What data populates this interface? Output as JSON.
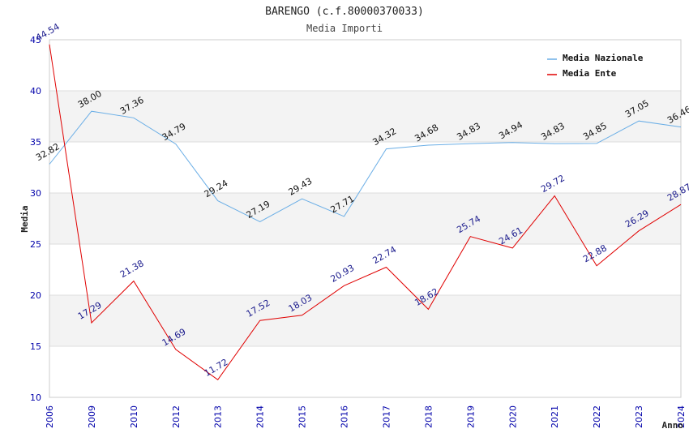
{
  "chart_data": {
    "type": "line",
    "title": "BARENGO (c.f.80000370033)",
    "subtitle": "Media Importi",
    "xlabel": "Anno",
    "ylabel": "Media",
    "ylim": [
      10,
      45
    ],
    "yticks": [
      "10",
      "15",
      "20",
      "25",
      "30",
      "35",
      "40",
      "45"
    ],
    "categories": [
      "2006",
      "2009",
      "2010",
      "2012",
      "2013",
      "2014",
      "2015",
      "2016",
      "2017",
      "2018",
      "2019",
      "2020",
      "2021",
      "2022",
      "2023",
      "2024"
    ],
    "grid": true,
    "legend_position": "top-right",
    "series": [
      {
        "name": "Media Nazionale",
        "color": "#6aaee6",
        "values": [
          32.82,
          38.0,
          37.36,
          34.79,
          29.24,
          27.19,
          29.43,
          27.71,
          34.32,
          34.68,
          34.83,
          34.94,
          34.83,
          34.85,
          37.05,
          36.46
        ],
        "labels": [
          "32.82",
          "38.00",
          "37.36",
          "34.79",
          "29.24",
          "27.19",
          "29.43",
          "27.71",
          "34.32",
          "34.68",
          "34.83",
          "34.94",
          "34.83",
          "34.85",
          "37.05",
          "36.46"
        ]
      },
      {
        "name": "Media Ente",
        "color": "#e00000",
        "values": [
          44.54,
          17.29,
          21.38,
          14.69,
          11.72,
          17.52,
          18.03,
          20.93,
          22.74,
          18.62,
          25.74,
          24.61,
          29.72,
          22.88,
          26.29,
          28.87
        ],
        "labels": [
          "44.54",
          "17.29",
          "21.38",
          "14.69",
          "11.72",
          "17.52",
          "18.03",
          "20.93",
          "22.74",
          "18.62",
          "25.74",
          "24.61",
          "29.72",
          "22.88",
          "26.29",
          "28.87"
        ]
      }
    ]
  }
}
